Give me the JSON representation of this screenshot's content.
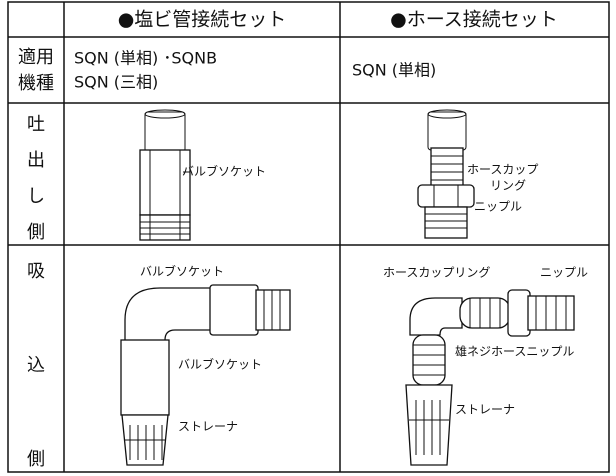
{
  "table": {
    "header": [
      "●塩ビ管接続セット",
      "●ホース接続セット"
    ],
    "rows": [
      {
        "label": [
          "適用",
          "機種"
        ],
        "cells": [
          [
            "SQN (単相) ･SQNB",
            "SQN (三相)"
          ],
          [
            "SQN (単相)"
          ]
        ]
      },
      {
        "label": [
          "吐",
          "出",
          "し",
          "側"
        ],
        "cells": [
          [
            "バルブソケット"
          ],
          [
            "ホースカップ",
            "リング",
            "ニップル"
          ]
        ]
      },
      {
        "label": [
          "吸",
          "込",
          "側"
        ],
        "cells": [
          [
            "バルブソケット",
            "バルブソケット",
            "ストレーナ"
          ],
          [
            "ホースカップリング",
            "ニップル",
            "雄ネジホースニップル",
            "ストレーナ"
          ]
        ]
      }
    ]
  }
}
